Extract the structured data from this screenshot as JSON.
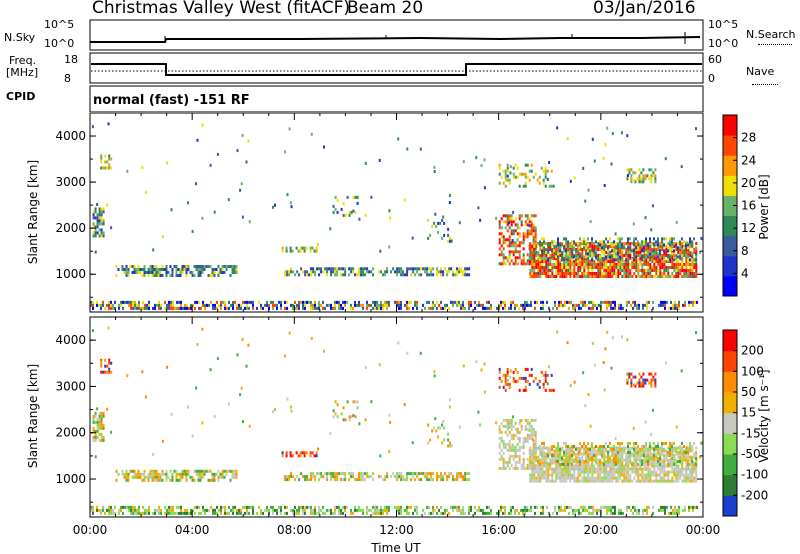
{
  "header": {
    "station": "Christmas Valley West (fitACF)",
    "beam": "Beam 20",
    "date": "03/Jan/2016"
  },
  "status_panels": {
    "nsky_label": "N.Sky",
    "nsky_ticks": [
      "10^5",
      "10^0"
    ],
    "nsearch_label": "N.Search",
    "nsearch_ticks": [
      "10^5",
      "10^0"
    ],
    "freq_label_1": "Freq.",
    "freq_label_2": "[MHz]",
    "freq_ticks": [
      "18",
      "8"
    ],
    "nave_label": "Nave",
    "nave_ticks": [
      "60",
      "0"
    ],
    "cpid_label": "CPID",
    "cpid_text": "normal (fast) -151 RF"
  },
  "chart_data": [
    {
      "type": "heatmap",
      "name": "power",
      "ylabel": "Slant Range [km]",
      "xlabel": "",
      "xlim": [
        0,
        24
      ],
      "ylim": [
        180,
        4500
      ],
      "x_ticks": [],
      "y_ticks": [
        "1000",
        "2000",
        "3000",
        "4000"
      ],
      "colorbar_label": "Power [dB]",
      "colorbar_ticks": [
        "28",
        "24",
        "20",
        "16",
        "12",
        "8",
        "4"
      ],
      "colors": [
        "#0000ff",
        "#2233cc",
        "#3c5aa0",
        "#2e8b57",
        "#66b266",
        "#f0e000",
        "#ff9900",
        "#ff4500",
        "#ff0000"
      ]
    },
    {
      "type": "heatmap",
      "name": "velocity",
      "ylabel": "Slant Range [km]",
      "xlabel": "Time UT",
      "xlim": [
        0,
        24
      ],
      "ylim": [
        180,
        4500
      ],
      "x_ticks": [
        "00:00",
        "04:00",
        "08:00",
        "12:00",
        "16:00",
        "20:00",
        "00:00"
      ],
      "y_ticks": [
        "1000",
        "2000",
        "3000",
        "4000"
      ],
      "colorbar_label": "Velocity [m s⁻¹]",
      "colorbar_ticks": [
        "200",
        "100",
        "50",
        "15",
        "-15",
        "-50",
        "-100",
        "-200"
      ],
      "colors": [
        "#1a3fcc",
        "#2e7d32",
        "#3fae3f",
        "#88dd55",
        "#c8c8c0",
        "#f0b000",
        "#ff8c00",
        "#ff4400",
        "#ff0000"
      ]
    }
  ]
}
